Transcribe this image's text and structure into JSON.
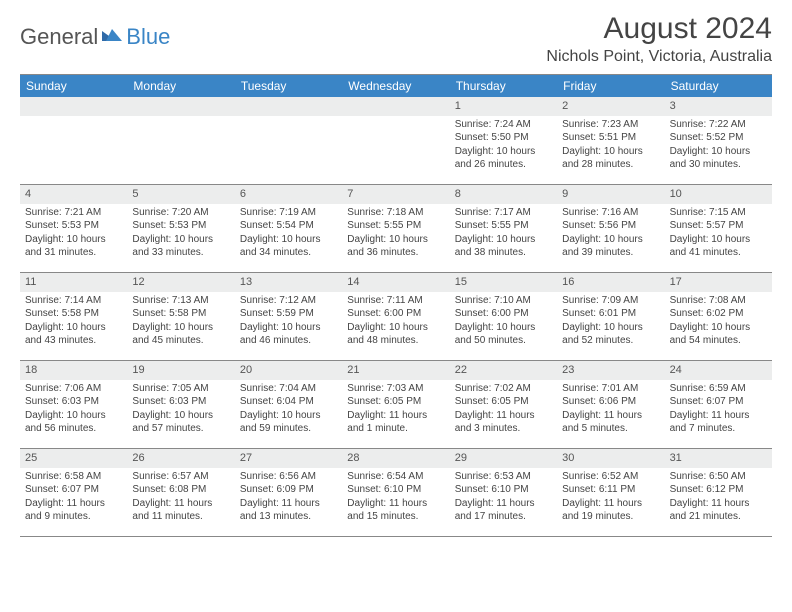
{
  "logo": {
    "text1": "General",
    "text2": "Blue"
  },
  "title": "August 2024",
  "location": "Nichols Point, Victoria, Australia",
  "colors": {
    "header_bg": "#3a85c6",
    "daynum_bg": "#eceded",
    "border": "#888888",
    "text": "#444444"
  },
  "weekdays": [
    "Sunday",
    "Monday",
    "Tuesday",
    "Wednesday",
    "Thursday",
    "Friday",
    "Saturday"
  ],
  "weeks": [
    [
      {
        "blank": true
      },
      {
        "blank": true
      },
      {
        "blank": true
      },
      {
        "blank": true
      },
      {
        "day": "1",
        "sunrise": "Sunrise: 7:24 AM",
        "sunset": "Sunset: 5:50 PM",
        "daylight": "Daylight: 10 hours and 26 minutes."
      },
      {
        "day": "2",
        "sunrise": "Sunrise: 7:23 AM",
        "sunset": "Sunset: 5:51 PM",
        "daylight": "Daylight: 10 hours and 28 minutes."
      },
      {
        "day": "3",
        "sunrise": "Sunrise: 7:22 AM",
        "sunset": "Sunset: 5:52 PM",
        "daylight": "Daylight: 10 hours and 30 minutes."
      }
    ],
    [
      {
        "day": "4",
        "sunrise": "Sunrise: 7:21 AM",
        "sunset": "Sunset: 5:53 PM",
        "daylight": "Daylight: 10 hours and 31 minutes."
      },
      {
        "day": "5",
        "sunrise": "Sunrise: 7:20 AM",
        "sunset": "Sunset: 5:53 PM",
        "daylight": "Daylight: 10 hours and 33 minutes."
      },
      {
        "day": "6",
        "sunrise": "Sunrise: 7:19 AM",
        "sunset": "Sunset: 5:54 PM",
        "daylight": "Daylight: 10 hours and 34 minutes."
      },
      {
        "day": "7",
        "sunrise": "Sunrise: 7:18 AM",
        "sunset": "Sunset: 5:55 PM",
        "daylight": "Daylight: 10 hours and 36 minutes."
      },
      {
        "day": "8",
        "sunrise": "Sunrise: 7:17 AM",
        "sunset": "Sunset: 5:55 PM",
        "daylight": "Daylight: 10 hours and 38 minutes."
      },
      {
        "day": "9",
        "sunrise": "Sunrise: 7:16 AM",
        "sunset": "Sunset: 5:56 PM",
        "daylight": "Daylight: 10 hours and 39 minutes."
      },
      {
        "day": "10",
        "sunrise": "Sunrise: 7:15 AM",
        "sunset": "Sunset: 5:57 PM",
        "daylight": "Daylight: 10 hours and 41 minutes."
      }
    ],
    [
      {
        "day": "11",
        "sunrise": "Sunrise: 7:14 AM",
        "sunset": "Sunset: 5:58 PM",
        "daylight": "Daylight: 10 hours and 43 minutes."
      },
      {
        "day": "12",
        "sunrise": "Sunrise: 7:13 AM",
        "sunset": "Sunset: 5:58 PM",
        "daylight": "Daylight: 10 hours and 45 minutes."
      },
      {
        "day": "13",
        "sunrise": "Sunrise: 7:12 AM",
        "sunset": "Sunset: 5:59 PM",
        "daylight": "Daylight: 10 hours and 46 minutes."
      },
      {
        "day": "14",
        "sunrise": "Sunrise: 7:11 AM",
        "sunset": "Sunset: 6:00 PM",
        "daylight": "Daylight: 10 hours and 48 minutes."
      },
      {
        "day": "15",
        "sunrise": "Sunrise: 7:10 AM",
        "sunset": "Sunset: 6:00 PM",
        "daylight": "Daylight: 10 hours and 50 minutes."
      },
      {
        "day": "16",
        "sunrise": "Sunrise: 7:09 AM",
        "sunset": "Sunset: 6:01 PM",
        "daylight": "Daylight: 10 hours and 52 minutes."
      },
      {
        "day": "17",
        "sunrise": "Sunrise: 7:08 AM",
        "sunset": "Sunset: 6:02 PM",
        "daylight": "Daylight: 10 hours and 54 minutes."
      }
    ],
    [
      {
        "day": "18",
        "sunrise": "Sunrise: 7:06 AM",
        "sunset": "Sunset: 6:03 PM",
        "daylight": "Daylight: 10 hours and 56 minutes."
      },
      {
        "day": "19",
        "sunrise": "Sunrise: 7:05 AM",
        "sunset": "Sunset: 6:03 PM",
        "daylight": "Daylight: 10 hours and 57 minutes."
      },
      {
        "day": "20",
        "sunrise": "Sunrise: 7:04 AM",
        "sunset": "Sunset: 6:04 PM",
        "daylight": "Daylight: 10 hours and 59 minutes."
      },
      {
        "day": "21",
        "sunrise": "Sunrise: 7:03 AM",
        "sunset": "Sunset: 6:05 PM",
        "daylight": "Daylight: 11 hours and 1 minute."
      },
      {
        "day": "22",
        "sunrise": "Sunrise: 7:02 AM",
        "sunset": "Sunset: 6:05 PM",
        "daylight": "Daylight: 11 hours and 3 minutes."
      },
      {
        "day": "23",
        "sunrise": "Sunrise: 7:01 AM",
        "sunset": "Sunset: 6:06 PM",
        "daylight": "Daylight: 11 hours and 5 minutes."
      },
      {
        "day": "24",
        "sunrise": "Sunrise: 6:59 AM",
        "sunset": "Sunset: 6:07 PM",
        "daylight": "Daylight: 11 hours and 7 minutes."
      }
    ],
    [
      {
        "day": "25",
        "sunrise": "Sunrise: 6:58 AM",
        "sunset": "Sunset: 6:07 PM",
        "daylight": "Daylight: 11 hours and 9 minutes."
      },
      {
        "day": "26",
        "sunrise": "Sunrise: 6:57 AM",
        "sunset": "Sunset: 6:08 PM",
        "daylight": "Daylight: 11 hours and 11 minutes."
      },
      {
        "day": "27",
        "sunrise": "Sunrise: 6:56 AM",
        "sunset": "Sunset: 6:09 PM",
        "daylight": "Daylight: 11 hours and 13 minutes."
      },
      {
        "day": "28",
        "sunrise": "Sunrise: 6:54 AM",
        "sunset": "Sunset: 6:10 PM",
        "daylight": "Daylight: 11 hours and 15 minutes."
      },
      {
        "day": "29",
        "sunrise": "Sunrise: 6:53 AM",
        "sunset": "Sunset: 6:10 PM",
        "daylight": "Daylight: 11 hours and 17 minutes."
      },
      {
        "day": "30",
        "sunrise": "Sunrise: 6:52 AM",
        "sunset": "Sunset: 6:11 PM",
        "daylight": "Daylight: 11 hours and 19 minutes."
      },
      {
        "day": "31",
        "sunrise": "Sunrise: 6:50 AM",
        "sunset": "Sunset: 6:12 PM",
        "daylight": "Daylight: 11 hours and 21 minutes."
      }
    ]
  ]
}
